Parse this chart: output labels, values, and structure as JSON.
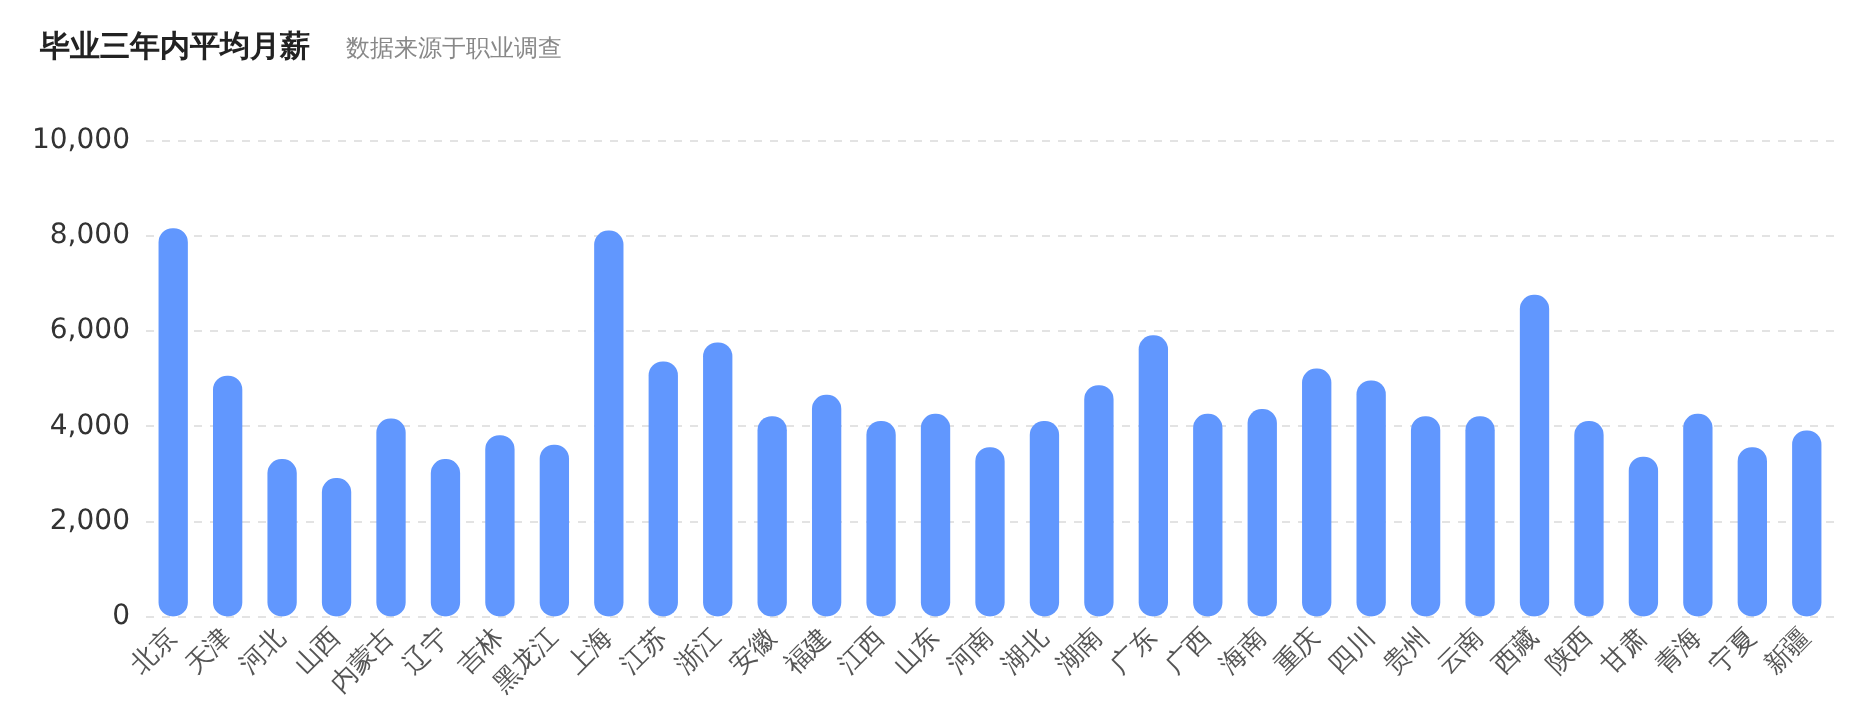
{
  "chart_data": {
    "type": "bar",
    "title": "毕业三年内平均月薪",
    "subtitle": "数据来源于职业调查",
    "categories": [
      "北京",
      "天津",
      "河北",
      "山西",
      "内蒙古",
      "辽宁",
      "吉林",
      "黑龙江",
      "上海",
      "江苏",
      "浙江",
      "安徽",
      "福建",
      "江西",
      "山东",
      "河南",
      "湖北",
      "湖南",
      "广东",
      "广西",
      "海南",
      "重庆",
      "四川",
      "贵州",
      "云南",
      "西藏",
      "陕西",
      "甘肃",
      "青海",
      "宁夏",
      "新疆"
    ],
    "values": [
      8150,
      5050,
      3300,
      2900,
      4150,
      3300,
      3800,
      3600,
      8100,
      5350,
      5750,
      4200,
      4650,
      4100,
      4250,
      3550,
      4100,
      4850,
      5900,
      4250,
      4350,
      5200,
      4950,
      4200,
      4200,
      6750,
      4100,
      3350,
      4250,
      3550,
      3900
    ],
    "color": "#6197fe",
    "ylim": [
      0,
      10000
    ],
    "yticks": [
      0,
      {
        "value": 2000,
        "label": "2,000"
      },
      {
        "value": 4000,
        "label": "4,000"
      },
      {
        "value": 6000,
        "label": "6,000"
      },
      {
        "value": 8000,
        "label": "8,000"
      },
      {
        "value": 10000,
        "label": "10,000"
      }
    ],
    "grid": "y"
  }
}
